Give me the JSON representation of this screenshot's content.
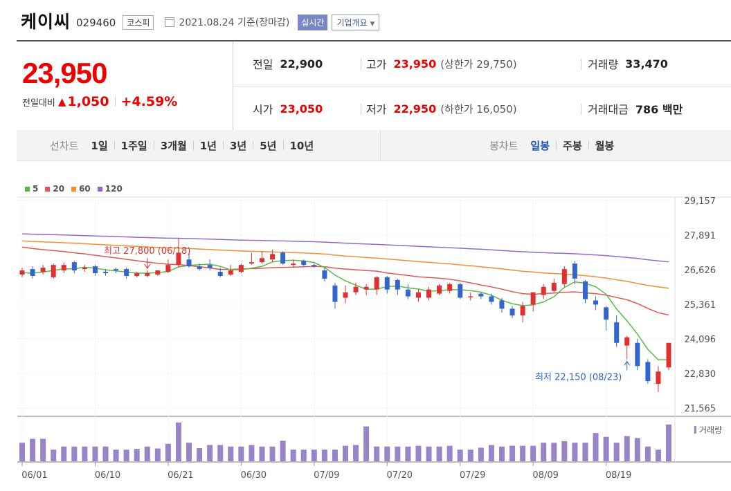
{
  "header": {
    "name": "케이씨",
    "code": "029460",
    "market": "코스피",
    "date": "2021.08.24 기준(장마감)",
    "realtime": "실시간",
    "company_info": "기업개요"
  },
  "quote": {
    "price": "23,950",
    "change_label": "전일대비",
    "change_amount": "1,050",
    "change_percent": "+4.59%",
    "prev_label": "전일",
    "prev": "22,900",
    "high_label": "고가",
    "high": "23,950",
    "upper_limit": "(상한가 29,750)",
    "volume_label": "거래량",
    "volume": "33,470",
    "open_label": "시가",
    "open": "23,050",
    "low_label": "저가",
    "low": "22,950",
    "lower_limit": "(하한가 16,050)",
    "amount_label": "거래대금",
    "amount": "786 백만"
  },
  "tabs": {
    "line_title": "선차트",
    "line_items": [
      "1일",
      "1주일",
      "3개월",
      "1년",
      "3년",
      "5년",
      "10년"
    ],
    "candle_title": "봉차트",
    "candle_items": [
      "일봉",
      "주봉",
      "월봉"
    ],
    "active_candle": "일봉"
  },
  "colors": {
    "up": "#e03030",
    "down": "#3366cc",
    "ma5": "#55bb44",
    "ma20": "#e05555",
    "ma60": "#f09030",
    "ma120": "#9966cc",
    "volume": "#9a84c8"
  },
  "chart_data": {
    "type": "candlestick",
    "legend": [
      {
        "name": "5",
        "color": "#55bb44"
      },
      {
        "name": "20",
        "color": "#e05555"
      },
      {
        "name": "60",
        "color": "#f09030"
      },
      {
        "name": "120",
        "color": "#9966cc"
      }
    ],
    "y_ticks": [
      "29,157",
      "27,891",
      "26,626",
      "25,361",
      "24,096",
      "22,830",
      "21,565"
    ],
    "ylim": [
      21565,
      29157
    ],
    "x_ticks": [
      "06/01",
      "06/10",
      "06/21",
      "06/30",
      "07/09",
      "07/20",
      "07/29",
      "08/09",
      "08/19"
    ],
    "x_tick_index": [
      0,
      7,
      14,
      21,
      28,
      35,
      42,
      49,
      56
    ],
    "high_annotation": "최고 27,800 (06/18)",
    "high_index": 12,
    "low_annotation": "최저 22,150 (08/23)",
    "low_index": 58,
    "volume_label": "거래량",
    "candles": [
      {
        "o": 26450,
        "h": 26700,
        "l": 26350,
        "c": 26600
      },
      {
        "o": 26650,
        "h": 26750,
        "l": 26300,
        "c": 26400
      },
      {
        "o": 26550,
        "h": 26800,
        "l": 26450,
        "c": 26700
      },
      {
        "o": 26350,
        "h": 26850,
        "l": 26300,
        "c": 26800
      },
      {
        "o": 26600,
        "h": 26900,
        "l": 26500,
        "c": 26800
      },
      {
        "o": 26900,
        "h": 26950,
        "l": 26500,
        "c": 26600
      },
      {
        "o": 26650,
        "h": 26800,
        "l": 26550,
        "c": 26700
      },
      {
        "o": 26750,
        "h": 26800,
        "l": 26400,
        "c": 26500
      },
      {
        "o": 26550,
        "h": 26650,
        "l": 26400,
        "c": 26500
      },
      {
        "o": 26650,
        "h": 26700,
        "l": 26500,
        "c": 26600
      },
      {
        "o": 26650,
        "h": 26700,
        "l": 26300,
        "c": 26400
      },
      {
        "o": 26400,
        "h": 26550,
        "l": 26350,
        "c": 26500
      },
      {
        "o": 26400,
        "h": 26600,
        "l": 26350,
        "c": 26500
      },
      {
        "o": 26450,
        "h": 26600,
        "l": 26400,
        "c": 26600
      },
      {
        "o": 26550,
        "h": 27000,
        "l": 26500,
        "c": 26800
      },
      {
        "o": 26800,
        "h": 27800,
        "l": 26700,
        "c": 27250
      },
      {
        "o": 27000,
        "h": 27250,
        "l": 26700,
        "c": 26750
      },
      {
        "o": 26750,
        "h": 26850,
        "l": 26600,
        "c": 26650
      },
      {
        "o": 26800,
        "h": 27000,
        "l": 26600,
        "c": 26700
      },
      {
        "o": 26550,
        "h": 26700,
        "l": 26350,
        "c": 26400
      },
      {
        "o": 26450,
        "h": 26800,
        "l": 26400,
        "c": 26600
      },
      {
        "o": 26550,
        "h": 26850,
        "l": 26500,
        "c": 26800
      },
      {
        "o": 26850,
        "h": 27250,
        "l": 26800,
        "c": 26900
      },
      {
        "o": 26900,
        "h": 27300,
        "l": 26850,
        "c": 27050
      },
      {
        "o": 27000,
        "h": 27350,
        "l": 26900,
        "c": 27200
      },
      {
        "o": 27250,
        "h": 27300,
        "l": 26800,
        "c": 26850
      },
      {
        "o": 26800,
        "h": 27000,
        "l": 26700,
        "c": 26850
      },
      {
        "o": 26950,
        "h": 27000,
        "l": 26750,
        "c": 26800
      },
      {
        "o": 26800,
        "h": 26850,
        "l": 26700,
        "c": 26750
      },
      {
        "o": 26600,
        "h": 26700,
        "l": 26200,
        "c": 26300
      },
      {
        "o": 26050,
        "h": 26150,
        "l": 25200,
        "c": 25450
      },
      {
        "o": 25600,
        "h": 26050,
        "l": 25400,
        "c": 25800
      },
      {
        "o": 25800,
        "h": 26150,
        "l": 25700,
        "c": 26000
      },
      {
        "o": 25900,
        "h": 26100,
        "l": 25700,
        "c": 26000
      },
      {
        "o": 25900,
        "h": 26400,
        "l": 25700,
        "c": 26350
      },
      {
        "o": 26350,
        "h": 26400,
        "l": 25750,
        "c": 25900
      },
      {
        "o": 26250,
        "h": 26300,
        "l": 25700,
        "c": 25900
      },
      {
        "o": 25900,
        "h": 26100,
        "l": 25550,
        "c": 25650
      },
      {
        "o": 25600,
        "h": 25900,
        "l": 25450,
        "c": 25800
      },
      {
        "o": 25600,
        "h": 26000,
        "l": 25500,
        "c": 25900
      },
      {
        "o": 25750,
        "h": 26100,
        "l": 25700,
        "c": 26050
      },
      {
        "o": 25850,
        "h": 26150,
        "l": 25750,
        "c": 26100
      },
      {
        "o": 26100,
        "h": 26150,
        "l": 25550,
        "c": 25600
      },
      {
        "o": 25650,
        "h": 25800,
        "l": 25500,
        "c": 25650
      },
      {
        "o": 25750,
        "h": 25800,
        "l": 25550,
        "c": 25650
      },
      {
        "o": 25650,
        "h": 25750,
        "l": 25350,
        "c": 25450
      },
      {
        "o": 25500,
        "h": 25600,
        "l": 25050,
        "c": 25200
      },
      {
        "o": 25200,
        "h": 25300,
        "l": 24850,
        "c": 24950
      },
      {
        "o": 24950,
        "h": 25450,
        "l": 24700,
        "c": 25300
      },
      {
        "o": 25350,
        "h": 25800,
        "l": 25100,
        "c": 25800
      },
      {
        "o": 25700,
        "h": 26100,
        "l": 25550,
        "c": 26000
      },
      {
        "o": 25850,
        "h": 26300,
        "l": 25800,
        "c": 26150
      },
      {
        "o": 26100,
        "h": 26750,
        "l": 26000,
        "c": 26650
      },
      {
        "o": 26850,
        "h": 26950,
        "l": 26100,
        "c": 26300
      },
      {
        "o": 26200,
        "h": 26250,
        "l": 25400,
        "c": 25550
      },
      {
        "o": 25500,
        "h": 25650,
        "l": 25150,
        "c": 25350
      },
      {
        "o": 25250,
        "h": 25300,
        "l": 24400,
        "c": 24800
      },
      {
        "o": 24700,
        "h": 24950,
        "l": 23800,
        "c": 23950
      },
      {
        "o": 23850,
        "h": 24200,
        "l": 23350,
        "c": 24150
      },
      {
        "o": 23950,
        "h": 24100,
        "l": 22950,
        "c": 23100
      },
      {
        "o": 23250,
        "h": 23350,
        "l": 22450,
        "c": 22550
      },
      {
        "o": 22450,
        "h": 23100,
        "l": 22150,
        "c": 22900
      },
      {
        "o": 23050,
        "h": 23950,
        "l": 22950,
        "c": 23950
      }
    ],
    "volume": [
      48,
      58,
      58,
      30,
      38,
      38,
      38,
      38,
      38,
      30,
      30,
      32,
      38,
      33,
      45,
      100,
      48,
      34,
      42,
      42,
      38,
      38,
      42,
      38,
      38,
      53,
      30,
      30,
      30,
      30,
      30,
      40,
      42,
      90,
      38,
      38,
      38,
      38,
      40,
      38,
      38,
      40,
      30,
      30,
      35,
      42,
      38,
      40,
      40,
      40,
      48,
      48,
      52,
      48,
      48,
      73,
      63,
      48,
      65,
      60,
      38,
      30,
      95
    ]
  }
}
